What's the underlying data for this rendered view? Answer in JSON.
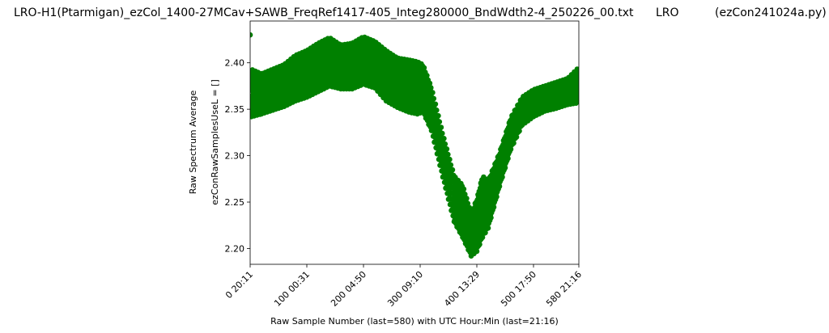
{
  "header": {
    "filename": "LRO-H1(Ptarmigan)_ezCol_1400-27MCav+SAWB_FreqRef1417-405_Integ280000_BndWdth2-4_250226_00.txt",
    "station": "LRO",
    "program": "(ezCon241024a.py)"
  },
  "chart_data": {
    "type": "scatter",
    "title": "",
    "xlabel": "Raw Sample Number (last=580) with UTC Hour:Min (last=21:16)",
    "ylabel_line1": "Raw Spectrum Average",
    "ylabel_line2": "ezConRawSamplesUseL  = []",
    "xlim": [
      0,
      580
    ],
    "ylim": [
      2.183,
      2.445
    ],
    "x_ticks": [
      {
        "value": 0,
        "label": "0  20:11"
      },
      {
        "value": 100,
        "label": "100  00:31"
      },
      {
        "value": 200,
        "label": "200  04:50"
      },
      {
        "value": 300,
        "label": "300  09:10"
      },
      {
        "value": 400,
        "label": "400  13:29"
      },
      {
        "value": 500,
        "label": "500  17:50"
      },
      {
        "value": 580,
        "label": "580  21:16"
      }
    ],
    "y_ticks": [
      {
        "value": 2.2,
        "label": "2.20"
      },
      {
        "value": 2.25,
        "label": "2.25"
      },
      {
        "value": 2.3,
        "label": "2.30"
      },
      {
        "value": 2.35,
        "label": "2.35"
      },
      {
        "value": 2.4,
        "label": "2.40"
      }
    ],
    "grid": false,
    "series": [
      {
        "color": "#008000",
        "marker": "circle",
        "points": [
          [
            0,
            2.43
          ],
          [
            2,
            2.36
          ],
          [
            5,
            2.37
          ],
          [
            10,
            2.358
          ],
          [
            15,
            2.372
          ],
          [
            20,
            2.362
          ],
          [
            25,
            2.375
          ],
          [
            30,
            2.365
          ],
          [
            35,
            2.378
          ],
          [
            40,
            2.368
          ],
          [
            45,
            2.38
          ],
          [
            50,
            2.37
          ],
          [
            55,
            2.382
          ],
          [
            60,
            2.372
          ],
          [
            65,
            2.385
          ],
          [
            70,
            2.375
          ],
          [
            75,
            2.388
          ],
          [
            80,
            2.378
          ],
          [
            85,
            2.39
          ],
          [
            90,
            2.38
          ],
          [
            95,
            2.392
          ],
          [
            100,
            2.383
          ],
          [
            105,
            2.395
          ],
          [
            110,
            2.386
          ],
          [
            115,
            2.398
          ],
          [
            120,
            2.389
          ],
          [
            125,
            2.402
          ],
          [
            130,
            2.392
          ],
          [
            135,
            2.405
          ],
          [
            140,
            2.395
          ],
          [
            145,
            2.403
          ],
          [
            150,
            2.393
          ],
          [
            155,
            2.4
          ],
          [
            160,
            2.39
          ],
          [
            165,
            2.398
          ],
          [
            170,
            2.388
          ],
          [
            175,
            2.397
          ],
          [
            180,
            2.388
          ],
          [
            185,
            2.398
          ],
          [
            190,
            2.39
          ],
          [
            195,
            2.405
          ],
          [
            200,
            2.398
          ],
          [
            205,
            2.41
          ],
          [
            210,
            2.398
          ],
          [
            215,
            2.405
          ],
          [
            220,
            2.392
          ],
          [
            225,
            2.4
          ],
          [
            230,
            2.388
          ],
          [
            235,
            2.395
          ],
          [
            240,
            2.38
          ],
          [
            245,
            2.39
          ],
          [
            250,
            2.375
          ],
          [
            255,
            2.385
          ],
          [
            260,
            2.372
          ],
          [
            265,
            2.382
          ],
          [
            270,
            2.37
          ],
          [
            275,
            2.38
          ],
          [
            280,
            2.372
          ],
          [
            285,
            2.385
          ],
          [
            290,
            2.378
          ],
          [
            295,
            2.39
          ],
          [
            300,
            2.38
          ],
          [
            305,
            2.388
          ],
          [
            310,
            2.378
          ],
          [
            315,
            2.375
          ],
          [
            320,
            2.36
          ],
          [
            325,
            2.345
          ],
          [
            330,
            2.33
          ],
          [
            335,
            2.315
          ],
          [
            340,
            2.3
          ],
          [
            345,
            2.285
          ],
          [
            350,
            2.27
          ],
          [
            355,
            2.26
          ],
          [
            360,
            2.25
          ],
          [
            365,
            2.255
          ],
          [
            370,
            2.245
          ],
          [
            375,
            2.235
          ],
          [
            380,
            2.232
          ],
          [
            385,
            2.22
          ],
          [
            390,
            2.21
          ],
          [
            395,
            2.2
          ],
          [
            400,
            2.215
          ],
          [
            405,
            2.245
          ],
          [
            410,
            2.26
          ],
          [
            415,
            2.23
          ],
          [
            420,
            2.25
          ],
          [
            425,
            2.262
          ],
          [
            430,
            2.27
          ],
          [
            435,
            2.28
          ],
          [
            440,
            2.29
          ],
          [
            445,
            2.3
          ],
          [
            450,
            2.308
          ],
          [
            455,
            2.316
          ],
          [
            460,
            2.323
          ],
          [
            465,
            2.33
          ],
          [
            470,
            2.336
          ],
          [
            475,
            2.342
          ],
          [
            480,
            2.347
          ],
          [
            485,
            2.35
          ],
          [
            490,
            2.353
          ],
          [
            495,
            2.355
          ],
          [
            500,
            2.357
          ],
          [
            505,
            2.358
          ],
          [
            510,
            2.36
          ],
          [
            515,
            2.361
          ],
          [
            520,
            2.362
          ],
          [
            525,
            2.363
          ],
          [
            530,
            2.364
          ],
          [
            535,
            2.365
          ],
          [
            540,
            2.366
          ],
          [
            545,
            2.367
          ],
          [
            550,
            2.368
          ],
          [
            555,
            2.37
          ],
          [
            560,
            2.371
          ],
          [
            565,
            2.372
          ],
          [
            570,
            2.373
          ],
          [
            575,
            2.374
          ],
          [
            580,
            2.375
          ]
        ],
        "band": [
          [
            2,
            2.345,
            2.39
          ],
          [
            20,
            2.348,
            2.385
          ],
          [
            40,
            2.352,
            2.39
          ],
          [
            60,
            2.356,
            2.395
          ],
          [
            80,
            2.362,
            2.405
          ],
          [
            100,
            2.366,
            2.41
          ],
          [
            120,
            2.372,
            2.418
          ],
          [
            140,
            2.378,
            2.424
          ],
          [
            160,
            2.375,
            2.416
          ],
          [
            180,
            2.375,
            2.418
          ],
          [
            200,
            2.38,
            2.425
          ],
          [
            220,
            2.376,
            2.42
          ],
          [
            240,
            2.362,
            2.41
          ],
          [
            260,
            2.355,
            2.402
          ],
          [
            280,
            2.35,
            2.4
          ],
          [
            295,
            2.348,
            2.398
          ],
          [
            305,
            2.35,
            2.395
          ],
          [
            320,
            2.33,
            2.37
          ],
          [
            340,
            2.28,
            2.32
          ],
          [
            360,
            2.232,
            2.275
          ],
          [
            375,
            2.215,
            2.265
          ],
          [
            390,
            2.195,
            2.235
          ],
          [
            400,
            2.2,
            2.25
          ],
          [
            410,
            2.215,
            2.275
          ],
          [
            420,
            2.225,
            2.27
          ],
          [
            440,
            2.27,
            2.3
          ],
          [
            460,
            2.31,
            2.338
          ],
          [
            480,
            2.336,
            2.36
          ],
          [
            500,
            2.345,
            2.368
          ],
          [
            520,
            2.351,
            2.372
          ],
          [
            540,
            2.354,
            2.376
          ],
          [
            560,
            2.358,
            2.38
          ],
          [
            580,
            2.36,
            2.392
          ]
        ]
      }
    ]
  }
}
